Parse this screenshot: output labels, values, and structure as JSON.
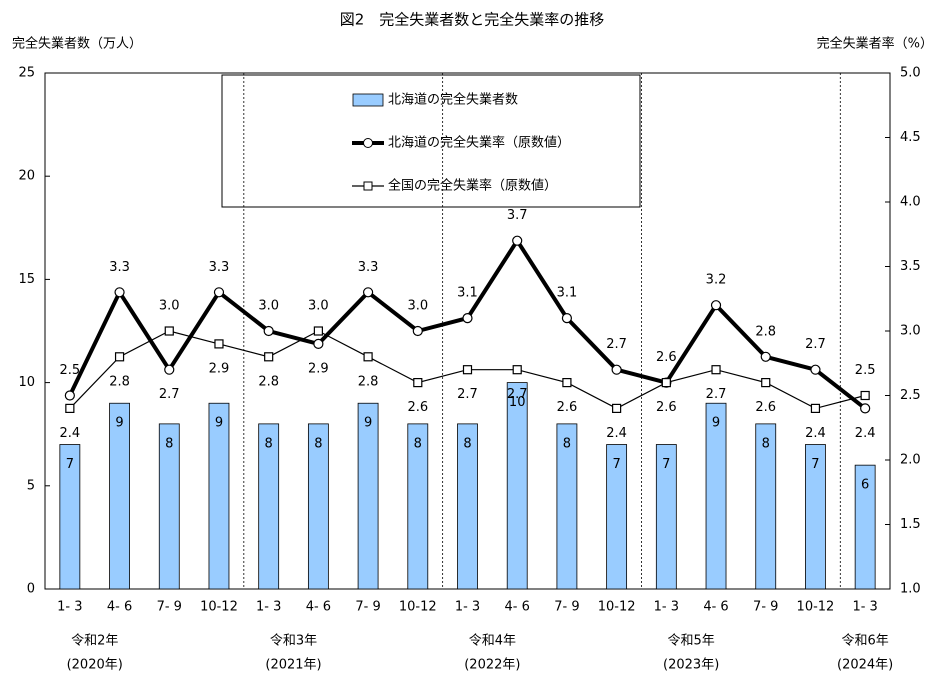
{
  "chart_data": {
    "type": "combo",
    "title": "図2　完全失業者数と完全失業率の推移",
    "y_label": "完全失業者数（万人）",
    "y2_label": "完全失業者率（%）",
    "categories": [
      "1- 3",
      "4- 6",
      "7- 9",
      "10-12",
      "1- 3",
      "4- 6",
      "7- 9",
      "10-12",
      "1- 3",
      "4- 6",
      "7- 9",
      "10-12",
      "1- 3",
      "4- 6",
      "7- 9",
      "10-12",
      "1- 3"
    ],
    "year_labels": [
      "令和2年",
      null,
      null,
      null,
      "令和3年",
      null,
      null,
      null,
      "令和4年",
      null,
      null,
      null,
      "令和5年",
      null,
      null,
      null,
      "令和6年"
    ],
    "year_sub_labels": [
      "(2020年)",
      null,
      null,
      null,
      "(2021年)",
      null,
      null,
      null,
      "(2022年)",
      null,
      null,
      null,
      "(2023年)",
      null,
      null,
      null,
      "(2024年)"
    ],
    "ylim": [
      0,
      25
    ],
    "yticks": [
      0,
      5,
      10,
      15,
      20,
      25
    ],
    "y2lim": [
      1.0,
      5.0
    ],
    "y2ticks": [
      {
        "value": 1.0,
        "label": "1.0"
      },
      1.5,
      {
        "value": 2.0,
        "label": "2.0"
      },
      2.5,
      {
        "value": 3.0,
        "label": "3.0"
      },
      3.5,
      {
        "value": 4.0,
        "label": "4.0"
      },
      4.5,
      {
        "value": 5.0,
        "label": "5.0"
      }
    ],
    "series": [
      {
        "name": "北海道の完全失業者数",
        "type": "bar",
        "color": "#99ccff",
        "values": [
          7,
          9,
          8,
          9,
          8,
          8,
          9,
          8,
          8,
          10,
          8,
          7,
          7,
          9,
          8,
          7,
          6
        ]
      },
      {
        "name": "北海道の完全失業率（原数値）",
        "type": "line",
        "marker": "circle",
        "axis": "y2",
        "color": "#000000",
        "values": [
          2.5,
          3.3,
          2.7,
          3.3,
          3.0,
          2.9,
          3.3,
          3.0,
          3.1,
          3.7,
          3.1,
          2.7,
          2.6,
          3.2,
          2.8,
          2.7,
          2.4
        ],
        "value_labels": [
          "2.5",
          "3.3",
          "2.7",
          "3.3",
          "3.0",
          "2.9",
          "3.3",
          "3.0",
          "3.1",
          "3.7",
          "3.1",
          "2.7",
          "2.6",
          "3.2",
          "2.8",
          "2.7",
          "2.4"
        ]
      },
      {
        "name": "全国の完全失業率（原数値）",
        "type": "line",
        "marker": "square",
        "axis": "y2",
        "color": "#000000",
        "values": [
          2.4,
          2.8,
          3.0,
          2.9,
          2.8,
          3.0,
          2.8,
          2.6,
          2.7,
          2.7,
          2.6,
          2.4,
          2.6,
          2.7,
          2.6,
          2.4,
          2.5
        ],
        "value_labels": [
          "2.4",
          "2.8",
          "3.0",
          "2.9",
          "2.8",
          "3.0",
          "2.8",
          "2.6",
          "2.7",
          "2.7",
          "2.6",
          "2.4",
          "2.6",
          "2.7",
          "2.6",
          "2.4",
          "2.5"
        ]
      }
    ]
  }
}
